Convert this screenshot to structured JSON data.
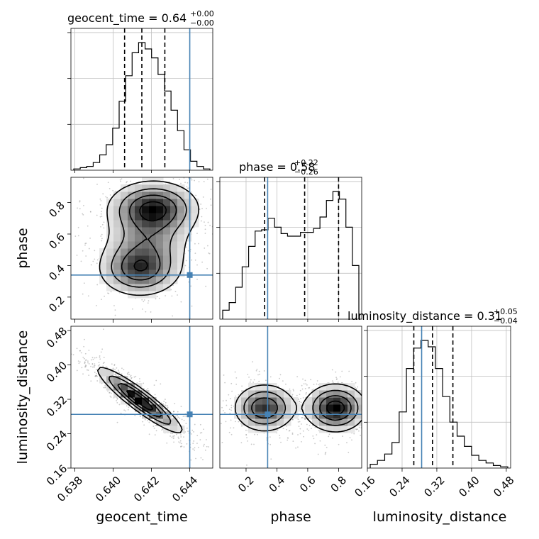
{
  "chart_data": {
    "type": "corner",
    "true_values": {
      "geocent_time": 0.644,
      "phase": 0.34,
      "luminosity_distance": 0.285
    },
    "colors": {
      "truth": "#4682b4",
      "hist": "#000000",
      "grid": "#c0c0c0",
      "quantile": "#000000"
    },
    "grid": true,
    "diagonals": [
      {
        "param": "geocent_time",
        "title": "geocent_time = 0.64",
        "title_up": "+0.00",
        "title_down": "−0.00",
        "xlim": [
          0.6378,
          0.6452
        ],
        "quantiles": [
          0.6406,
          0.6415,
          0.6427
        ],
        "histogram": [
          0.01,
          0.02,
          0.03,
          0.06,
          0.12,
          0.2,
          0.33,
          0.54,
          0.74,
          0.92,
          1.0,
          0.95,
          0.88,
          0.75,
          0.62,
          0.47,
          0.31,
          0.16,
          0.07,
          0.03,
          0.01
        ]
      },
      {
        "param": "phase",
        "title": "phase = 0.58",
        "title_up": "+0.22",
        "title_down": "−0.26",
        "xlim": [
          0.03,
          0.95
        ],
        "quantiles": [
          0.32,
          0.58,
          0.8
        ],
        "histogram": [
          0.07,
          0.13,
          0.25,
          0.41,
          0.57,
          0.69,
          0.7,
          0.79,
          0.72,
          0.67,
          0.65,
          0.65,
          0.68,
          0.68,
          0.71,
          0.8,
          0.93,
          1.0,
          0.94,
          0.72,
          0.42
        ]
      },
      {
        "param": "luminosity_distance",
        "title": "luminosity_distance = 0.31",
        "title_up": "+0.05",
        "title_down": "−0.04",
        "xlim": [
          0.16,
          0.49
        ],
        "quantiles": [
          0.267,
          0.31,
          0.357
        ],
        "histogram": [
          0.03,
          0.06,
          0.11,
          0.2,
          0.44,
          0.78,
          0.94,
          1.0,
          0.95,
          0.78,
          0.56,
          0.36,
          0.25,
          0.17,
          0.1,
          0.06,
          0.04,
          0.02,
          0.01
        ]
      }
    ],
    "panels_2d": [
      {
        "x": "geocent_time",
        "y": "phase",
        "ticks_y": [
          "0.2",
          "0.4",
          "0.6",
          "0.8"
        ],
        "ylim": [
          0.06,
          0.96
        ],
        "truth": [
          0.644,
          0.34
        ],
        "density_components": [
          {
            "center": [
              0.6421,
              0.76
            ],
            "sigma": [
              0.0012,
              0.09
            ],
            "weight": 1.0
          },
          {
            "center": [
              0.6414,
              0.38
            ],
            "sigma": [
              0.0011,
              0.09
            ],
            "weight": 0.85
          },
          {
            "center": [
              0.6418,
              0.56
            ],
            "sigma": [
              0.0012,
              0.1
            ],
            "weight": 0.45
          }
        ]
      },
      {
        "x": "geocent_time",
        "y": "luminosity_distance",
        "ticks_y": [
          "0.16",
          "0.24",
          "0.32",
          "0.40",
          "0.48"
        ],
        "ylim": [
          0.16,
          0.49
        ],
        "truth": [
          0.644,
          0.285
        ],
        "density_components": [
          {
            "center": [
              0.6414,
              0.318
            ],
            "sigma": [
              0.0011,
              0.038
            ],
            "weight": 1.0,
            "rho": -0.92
          }
        ]
      },
      {
        "x": "phase",
        "y": "luminosity_distance",
        "truth": [
          0.34,
          0.285
        ],
        "density_components": [
          {
            "center": [
              0.32,
              0.3
            ],
            "sigma": [
              0.1,
              0.028
            ],
            "weight": 0.85
          },
          {
            "center": [
              0.78,
              0.3
            ],
            "sigma": [
              0.1,
              0.028
            ],
            "weight": 1.0
          }
        ]
      }
    ],
    "axes": {
      "geocent_time": {
        "label": "geocent_time",
        "ticks": [
          0.638,
          0.64,
          0.642,
          0.644
        ],
        "tick_labels": [
          "0.638",
          "0.640",
          "0.642",
          "0.644"
        ]
      },
      "phase": {
        "label": "phase",
        "ticks": [
          0.2,
          0.4,
          0.6,
          0.8
        ],
        "tick_labels": [
          "0.2",
          "0.4",
          "0.6",
          "0.8"
        ]
      },
      "luminosity_distance": {
        "label": "luminosity_distance",
        "ticks": [
          0.16,
          0.24,
          0.32,
          0.4,
          0.48
        ],
        "tick_labels": [
          "0.16",
          "0.24",
          "0.32",
          "0.40",
          "0.48"
        ]
      }
    }
  }
}
